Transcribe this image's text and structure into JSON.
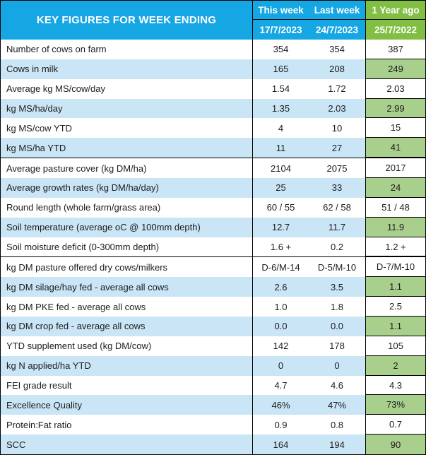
{
  "chart_data": {
    "type": "table",
    "title": "KEY FIGURES FOR WEEK ENDING",
    "columns": [
      {
        "label": "This week",
        "date": "17/7/2023"
      },
      {
        "label": "Last week",
        "date": "24/7/2023"
      },
      {
        "label": "1 Year ago",
        "date": "25/7/2022"
      }
    ],
    "sections": [
      {
        "rows": [
          {
            "label": "Number of cows on farm",
            "values": [
              "354",
              "354",
              "387"
            ]
          },
          {
            "label": "Cows in milk",
            "values": [
              "165",
              "208",
              "249"
            ]
          },
          {
            "label": "Average kg MS/cow/day",
            "values": [
              "1.54",
              "1.72",
              "2.03"
            ]
          },
          {
            "label": "kg MS/ha/day",
            "values": [
              "1.35",
              "2.03",
              "2.99"
            ]
          },
          {
            "label": "kg MS/cow YTD",
            "values": [
              "4",
              "10",
              "15"
            ]
          },
          {
            "label": "kg MS/ha YTD",
            "values": [
              "11",
              "27",
              "41"
            ]
          }
        ]
      },
      {
        "rows": [
          {
            "label": "Average pasture cover (kg DM/ha)",
            "values": [
              "2104",
              "2075",
              "2017"
            ]
          },
          {
            "label": "Average growth rates (kg DM/ha/day)",
            "values": [
              "25",
              "33",
              "24"
            ]
          },
          {
            "label": "Round length (whole farm/grass area)",
            "values": [
              "60 / 55",
              "62 / 58",
              "51 / 48"
            ]
          },
          {
            "label": "Soil temperature (average oC  @ 100mm depth)",
            "values": [
              "12.7",
              "11.7",
              "11.9"
            ]
          },
          {
            "label": "Soil moisture deficit (0-300mm depth)",
            "values": [
              "1.6 +",
              "0.2",
              "1.2 +"
            ]
          }
        ]
      },
      {
        "rows": [
          {
            "label": "kg DM pasture offered dry cows/milkers",
            "values": [
              "D-6/M-14",
              "D-5/M-10",
              "D-7/M-10"
            ]
          },
          {
            "label": "kg DM silage/hay fed - average all cows",
            "values": [
              "2.6",
              "3.5",
              "1.1"
            ]
          },
          {
            "label": "kg DM PKE fed - average all cows",
            "values": [
              "1.0",
              "1.8",
              "2.5"
            ]
          },
          {
            "label": "kg DM crop fed - average all cows",
            "values": [
              "0.0",
              "0.0",
              "1.1"
            ]
          },
          {
            "label": "YTD supplement used (kg DM/cow)",
            "values": [
              "142",
              "178",
              "105"
            ]
          },
          {
            "label": "kg N applied/ha YTD",
            "values": [
              "0",
              "0",
              "2"
            ]
          },
          {
            "label": "FEI grade result",
            "values": [
              "4.7",
              "4.6",
              "4.3"
            ]
          },
          {
            "label": "Excellence Quality",
            "values": [
              "46%",
              "47%",
              "73%"
            ]
          },
          {
            "label": "Protein:Fat ratio",
            "values": [
              "0.9",
              "0.8",
              "0.7"
            ]
          },
          {
            "label": "SCC",
            "values": [
              "164",
              "194",
              "90"
            ]
          }
        ]
      }
    ]
  },
  "colors": {
    "header_blue": "#15A6E4",
    "header_green": "#81BE43",
    "row_blue": "#C9E5F6",
    "cell_green": "#A9CF8D"
  }
}
